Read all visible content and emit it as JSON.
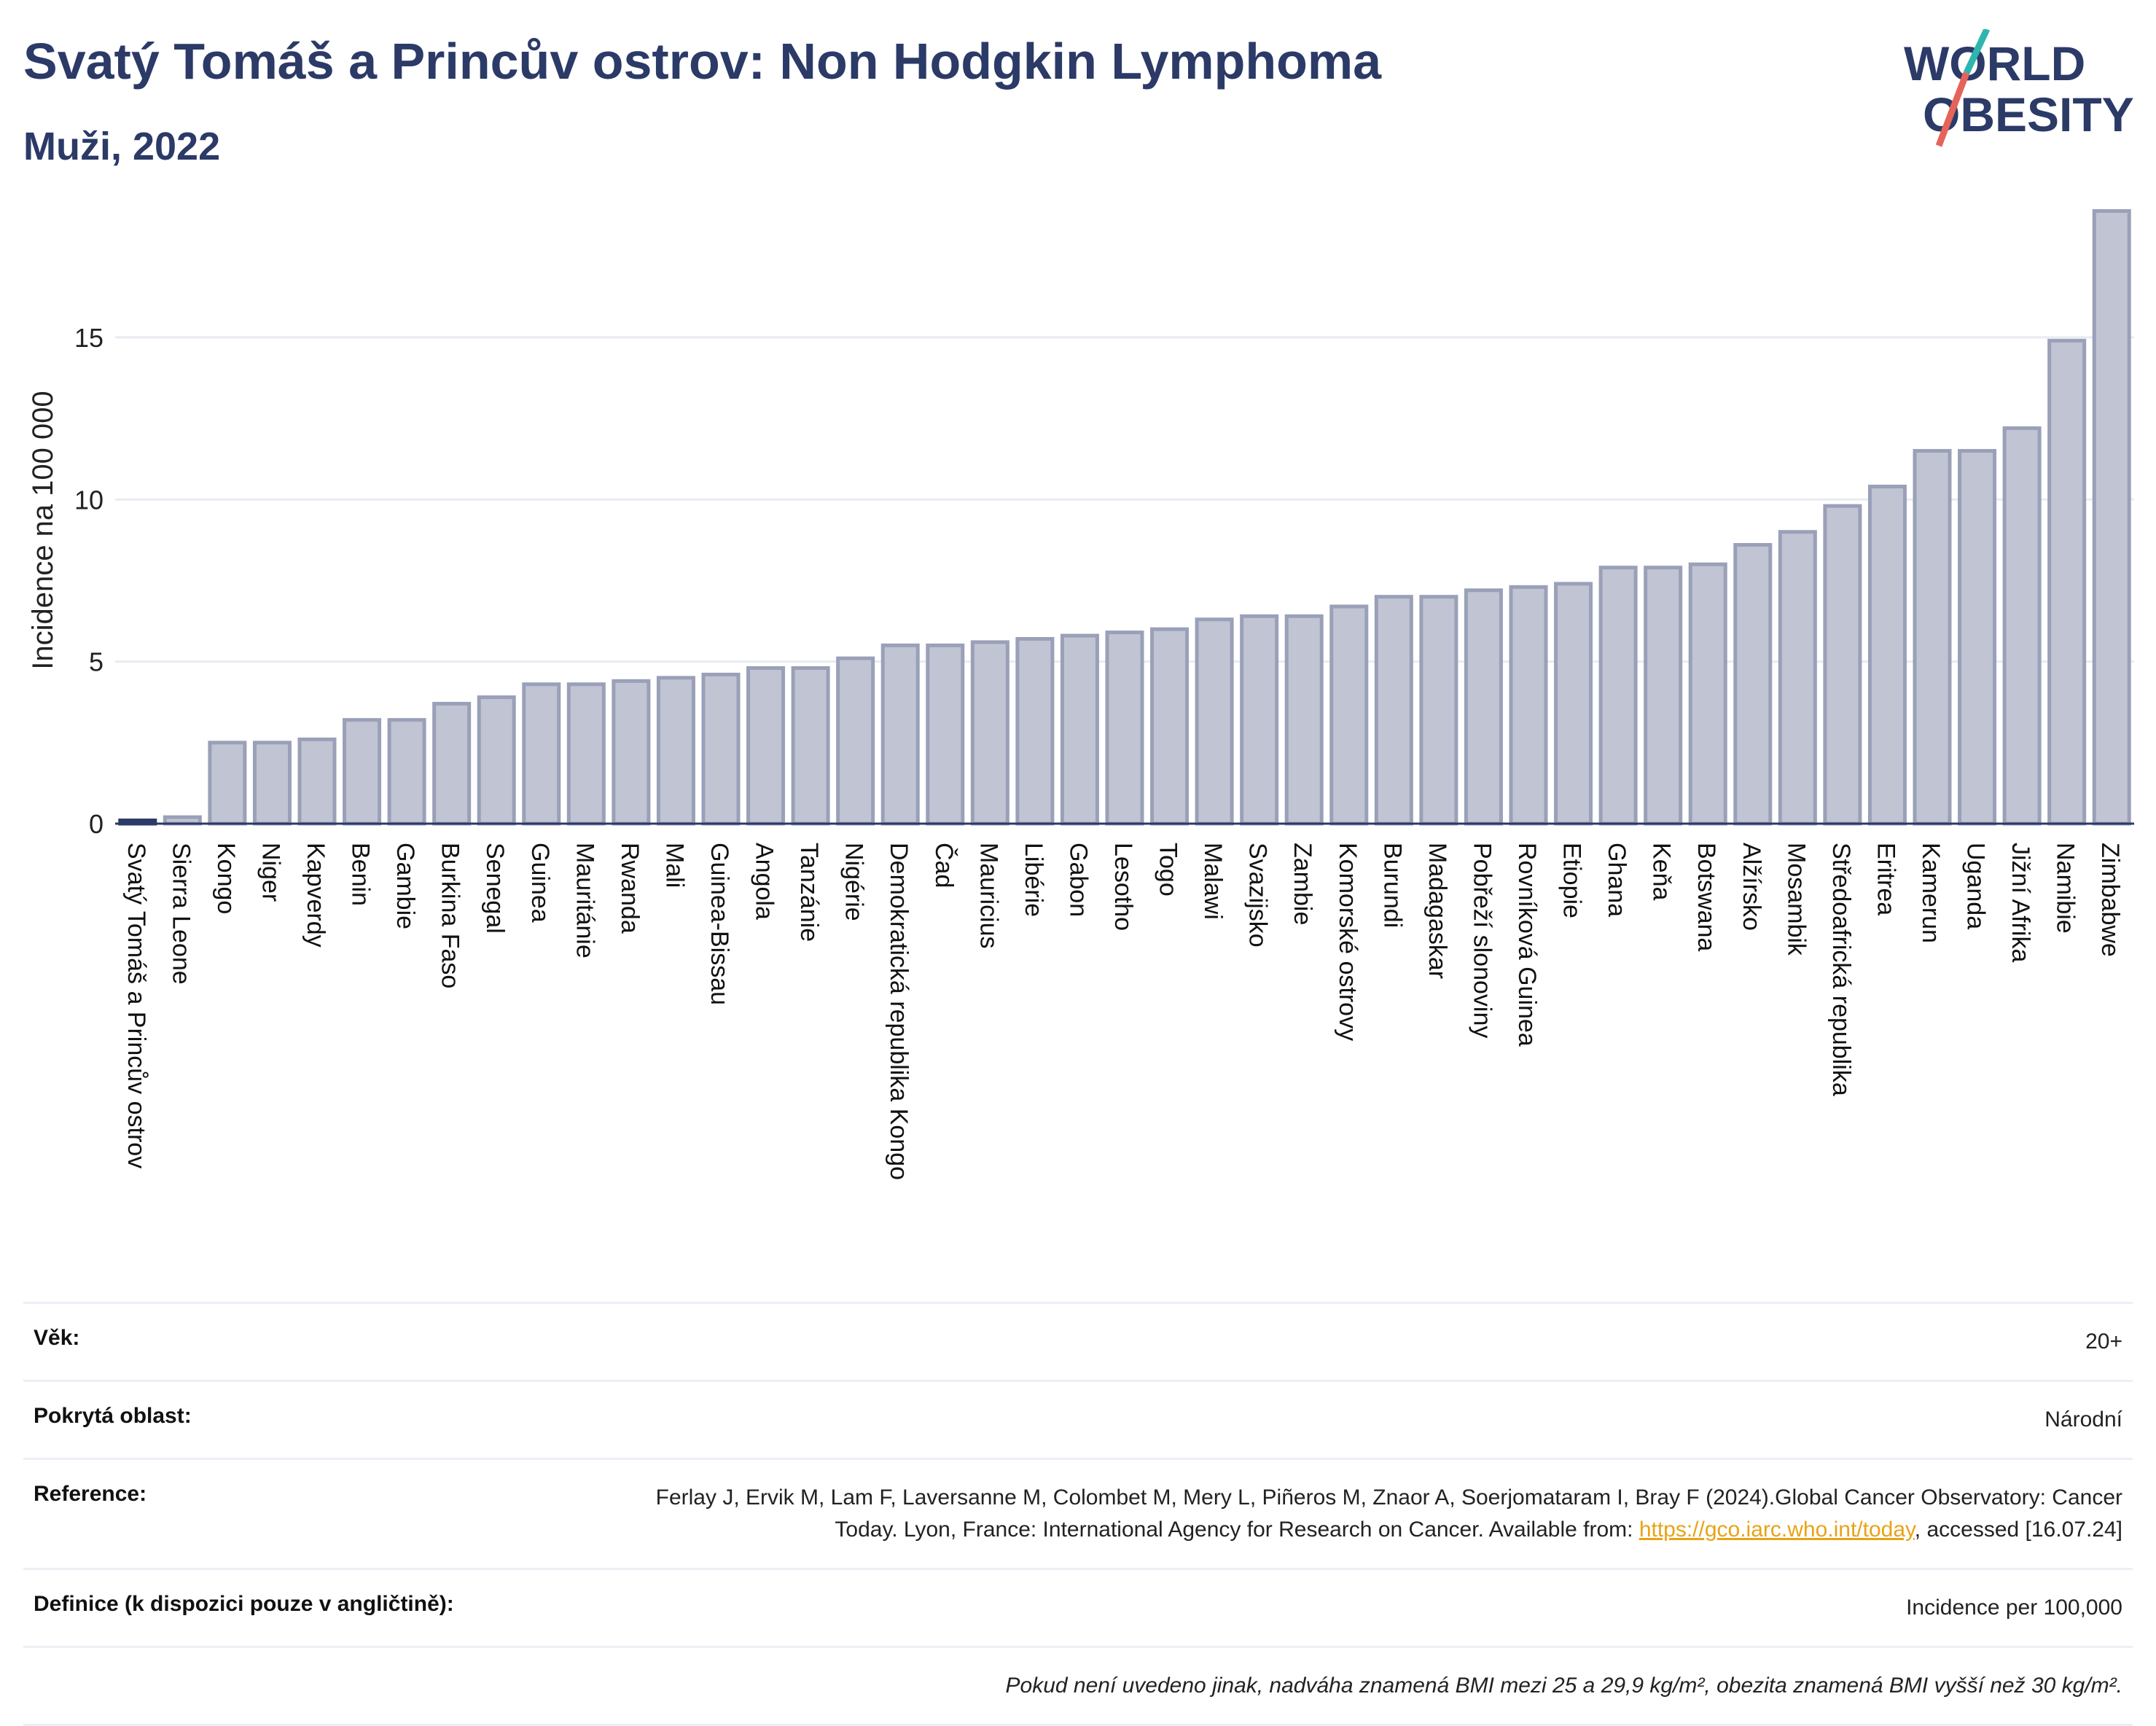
{
  "header": {
    "title": "Svatý Tomáš a Princův ostrov: Non Hodgkin Lymphoma",
    "subtitle": "Muži, 2022"
  },
  "logo": {
    "line1": "WORLD",
    "line2": "OBESITY"
  },
  "colors": {
    "bar_fill": "#c0c4d3",
    "bar_stroke": "#9aa0b8",
    "highlight": "#2b3a67",
    "title": "#2b3a67",
    "link": "#e8a317"
  },
  "chart_data": {
    "type": "bar",
    "ylabel": "Incidence na 100 000",
    "ylim": [
      0,
      19
    ],
    "yticks": [
      0,
      5,
      10,
      15
    ],
    "grid": true,
    "highlight": "Svatý Tomáš a Princův ostrov",
    "categories": [
      "Svatý Tomáš a Princův ostrov",
      "Sierra Leone",
      "Kongo",
      "Niger",
      "Kapverdy",
      "Benin",
      "Gambie",
      "Burkina Faso",
      "Senegal",
      "Guinea",
      "Mauritánie",
      "Rwanda",
      "Mali",
      "Guinea-Bissau",
      "Angola",
      "Tanzánie",
      "Nigérie",
      "Demokratická republika Kongo",
      "Čad",
      "Mauricius",
      "Libérie",
      "Gabon",
      "Lesotho",
      "Togo",
      "Malawi",
      "Svazijsko",
      "Zambie",
      "Komorské ostrovy",
      "Burundi",
      "Madagaskar",
      "Pobřeží slonoviny",
      "Rovníková Guinea",
      "Etiopie",
      "Ghana",
      "Keňa",
      "Botswana",
      "Alžírsko",
      "Mosambik",
      "Středoafrická republika",
      "Eritrea",
      "Kamerun",
      "Uganda",
      "Jižní Afrika",
      "Namibie",
      "Zimbabwe"
    ],
    "values": [
      0.1,
      0.2,
      2.5,
      2.5,
      2.6,
      3.2,
      3.2,
      3.7,
      3.9,
      4.3,
      4.3,
      4.4,
      4.5,
      4.6,
      4.8,
      4.8,
      5.1,
      5.5,
      5.5,
      5.6,
      5.7,
      5.8,
      5.9,
      6.0,
      6.3,
      6.4,
      6.4,
      6.7,
      7.0,
      7.0,
      7.2,
      7.3,
      7.4,
      7.9,
      7.9,
      8.0,
      8.6,
      9.0,
      9.8,
      10.4,
      11.5,
      11.5,
      12.2,
      14.9,
      18.9
    ]
  },
  "info": {
    "age_label": "Věk:",
    "age_value": "20+",
    "area_label": "Pokrytá oblast:",
    "area_value": "Národní",
    "ref_label": "Reference:",
    "ref_text_1": "Ferlay J, Ervik M, Lam F, Laversanne M, Colombet M, Mery L, Piñeros M, Znaor A, Soerjomataram I, Bray F (2024).Global Cancer Observatory: Cancer Today. Lyon, France: International Agency for Research on Cancer. Available from:",
    "ref_link": "https://gco.iarc.who.int/today",
    "ref_text_2": ", accessed [16.07.24]",
    "def_label": "Definice (k dispozici pouze v angličtině):",
    "def_value": "Incidence per 100,000",
    "note": "Pokud není uvedeno jinak, nadváha znamená BMI mezi 25 a 29,9 kg/m², obezita znamená BMI vyšší než 30 kg/m²."
  }
}
